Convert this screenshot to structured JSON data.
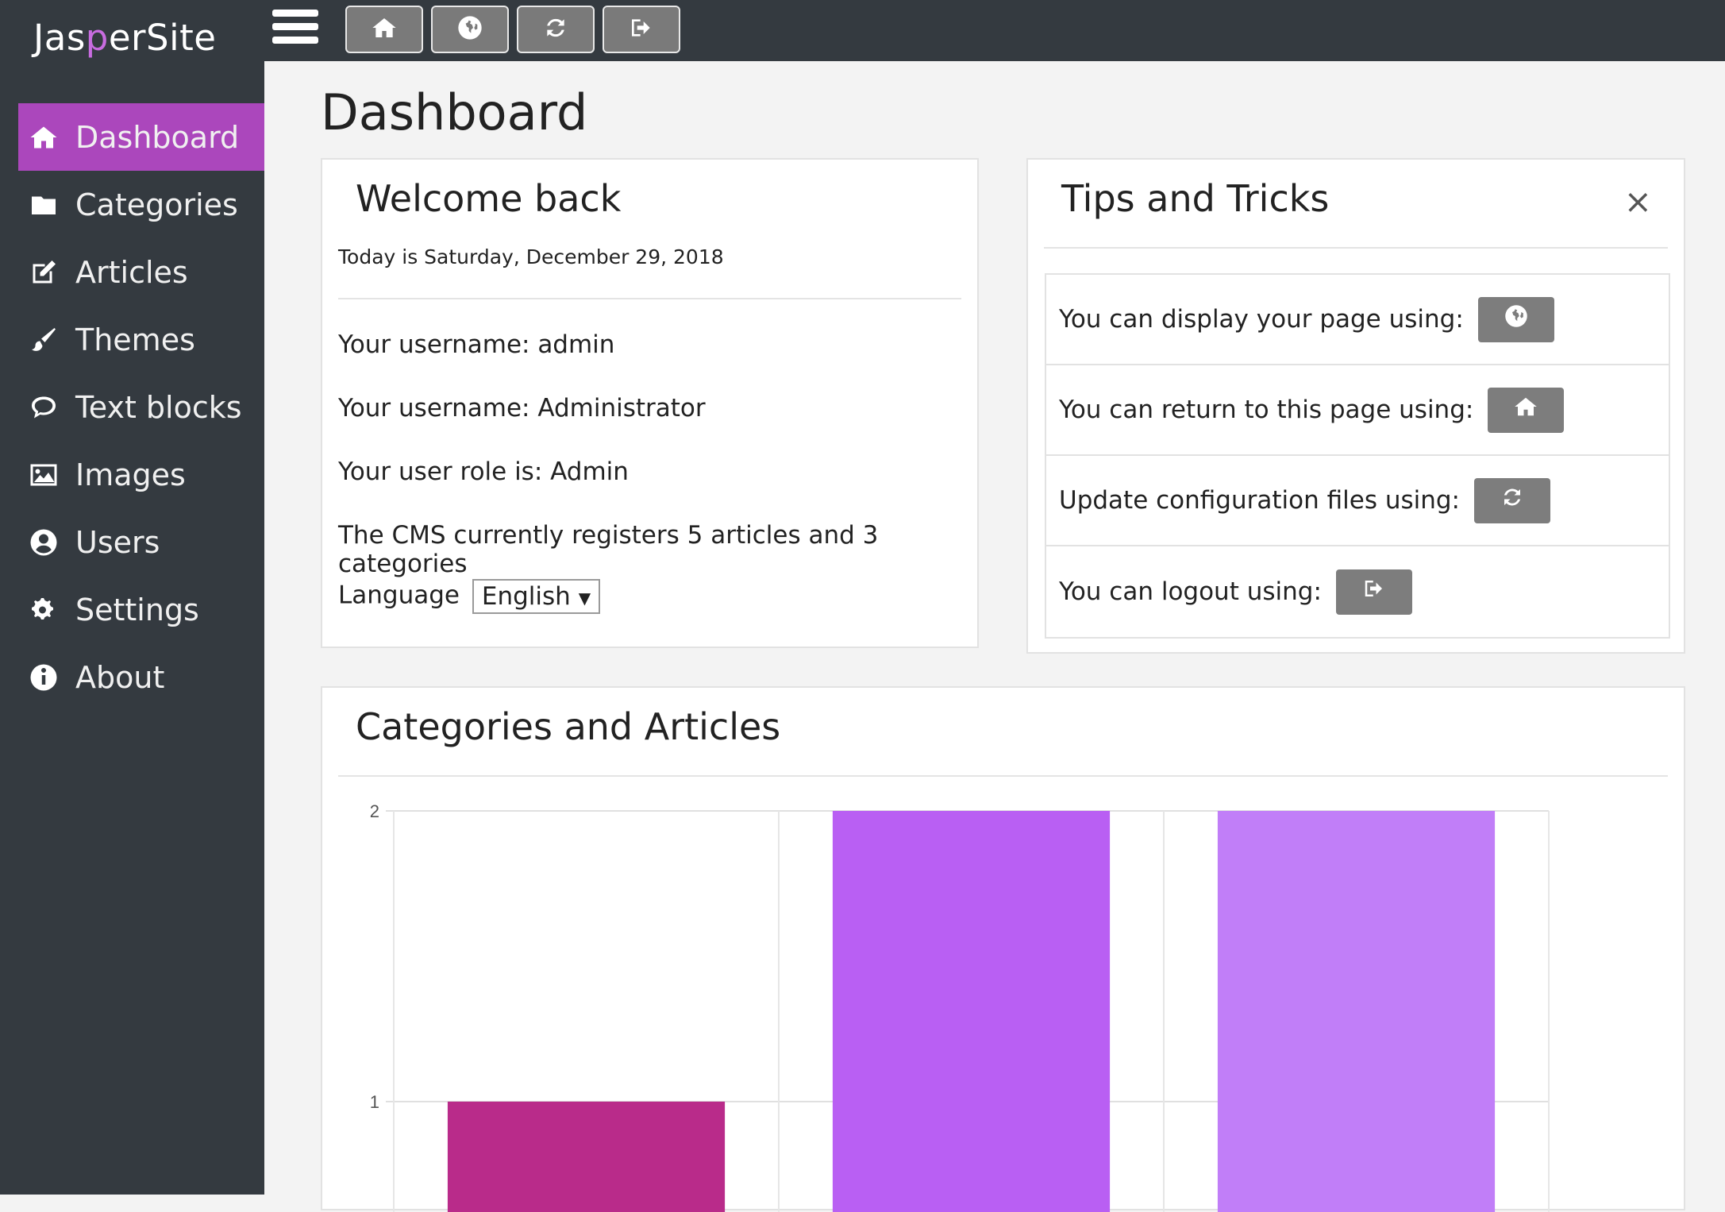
{
  "app": {
    "logo_part1": "Jas",
    "logo_part2": "p",
    "logo_part3": "erSite"
  },
  "sidebar": {
    "items": [
      {
        "label": "Dashboard",
        "icon": "home-icon",
        "active": true
      },
      {
        "label": "Categories",
        "icon": "folder-icon"
      },
      {
        "label": "Articles",
        "icon": "edit-icon"
      },
      {
        "label": "Themes",
        "icon": "brush-icon"
      },
      {
        "label": "Text blocks",
        "icon": "comment-icon"
      },
      {
        "label": "Images",
        "icon": "image-icon"
      },
      {
        "label": "Users",
        "icon": "user-circle-icon"
      },
      {
        "label": "Settings",
        "icon": "gears-icon"
      },
      {
        "label": "About",
        "icon": "info-icon"
      }
    ]
  },
  "toolbar": {
    "buttons": [
      "home-icon",
      "globe-icon",
      "refresh-icon",
      "logout-icon"
    ]
  },
  "main": {
    "page_title": "Dashboard"
  },
  "welcome": {
    "title": "Welcome back",
    "date": "Today is Saturday, December 29, 2018",
    "username_line": "Your username: admin",
    "fullname_line": "Your username: Administrator",
    "role_line": "Your user role is: Admin",
    "stats_line": "The CMS currently registers 5 articles and 3 categories",
    "language_label": "Language",
    "language_value": "English"
  },
  "tips": {
    "title": "Tips and Tricks",
    "close": "×",
    "rows": [
      {
        "text": "You can display your page using:",
        "icon": "globe-icon"
      },
      {
        "text": "You can return to this page using:",
        "icon": "home-icon"
      },
      {
        "text": "Update configuration files using:",
        "icon": "refresh-icon"
      },
      {
        "text": "You can logout using:",
        "icon": "logout-icon"
      }
    ]
  },
  "chart_card": {
    "title": "Categories and Articles"
  },
  "chart_data": {
    "type": "bar",
    "values": [
      1,
      2,
      2
    ],
    "colors": [
      "#b92b8a",
      "#b95ff3",
      "#c17ef8"
    ],
    "ylim": [
      0,
      2
    ],
    "yticks": [
      "1",
      "2"
    ],
    "grid": true
  },
  "colors": {
    "sidebar_bg": "#343a40",
    "accent": "#ab47bc",
    "button_gray": "#7a7a7a"
  }
}
